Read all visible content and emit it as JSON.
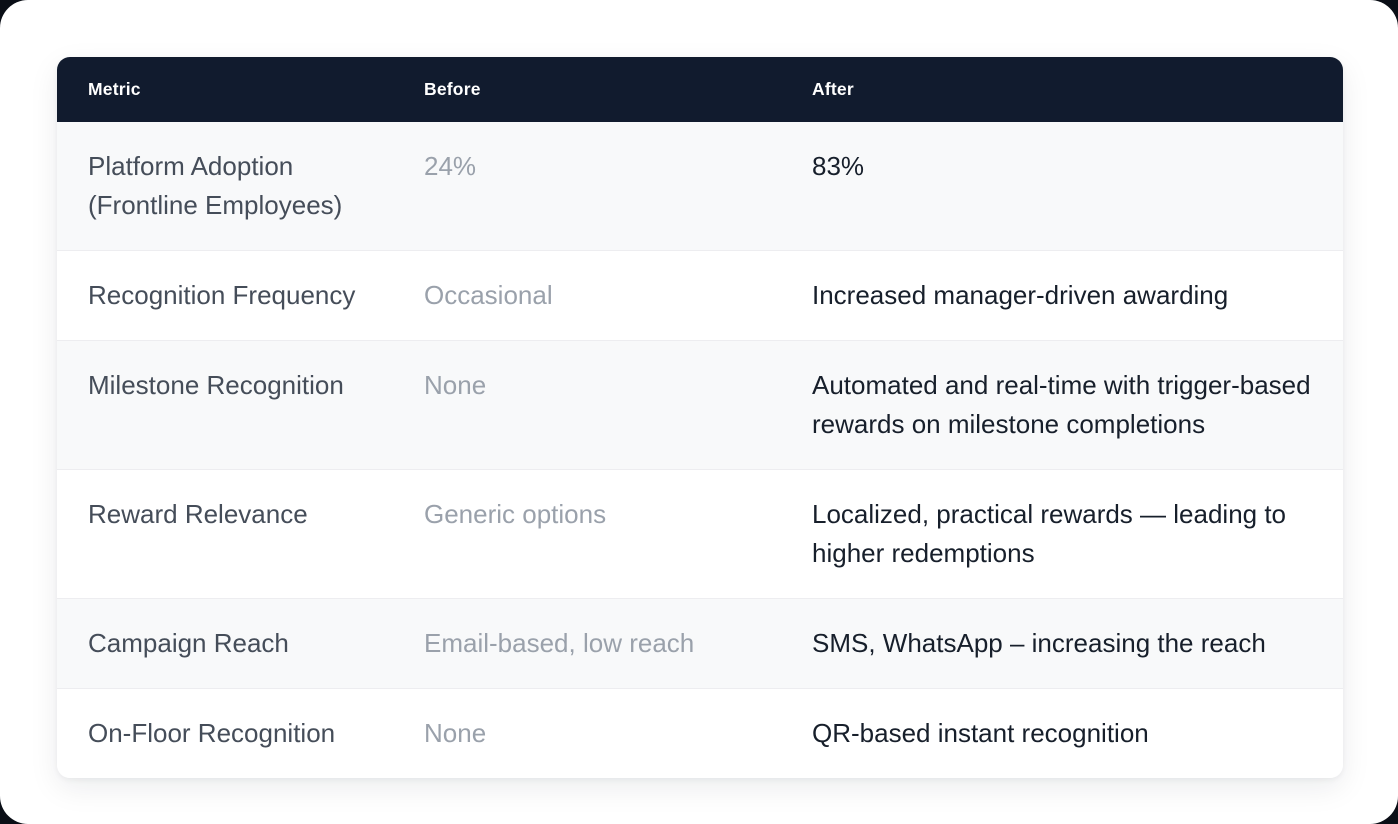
{
  "page": {
    "outer_background": "#0a0e16",
    "surface_background": "#ffffff"
  },
  "table": {
    "header": {
      "background": "#111b2e",
      "text_color": "#ffffff",
      "columns": [
        "Metric",
        "Before",
        "After"
      ]
    },
    "rows": [
      {
        "metric": "Platform Adoption (Frontline Employees)",
        "before": "24%",
        "after": "83%"
      },
      {
        "metric": "Recognition Frequency",
        "before": "Occasional",
        "after": "Increased manager-driven awarding"
      },
      {
        "metric": "Milestone Recognition",
        "before": "None",
        "after": "Automated and real-time with trigger-based rewards on milestone completions"
      },
      {
        "metric": "Reward Relevance",
        "before": "Generic options",
        "after": "Localized, practical rewards — leading to higher redemptions"
      },
      {
        "metric": "Campaign Reach",
        "before": "Email-based, low reach",
        "after": "SMS, WhatsApp – increasing the reach"
      },
      {
        "metric": "On-Floor Recognition",
        "before": "None",
        "after": "QR-based instant recognition"
      }
    ],
    "colors": {
      "metric_text": "#454d59",
      "before_text": "#9aa1ab",
      "after_text": "#171f2b",
      "row_alt_background": "#f8f9fa",
      "row_background": "#ffffff",
      "row_divider": "#ededf0"
    }
  }
}
